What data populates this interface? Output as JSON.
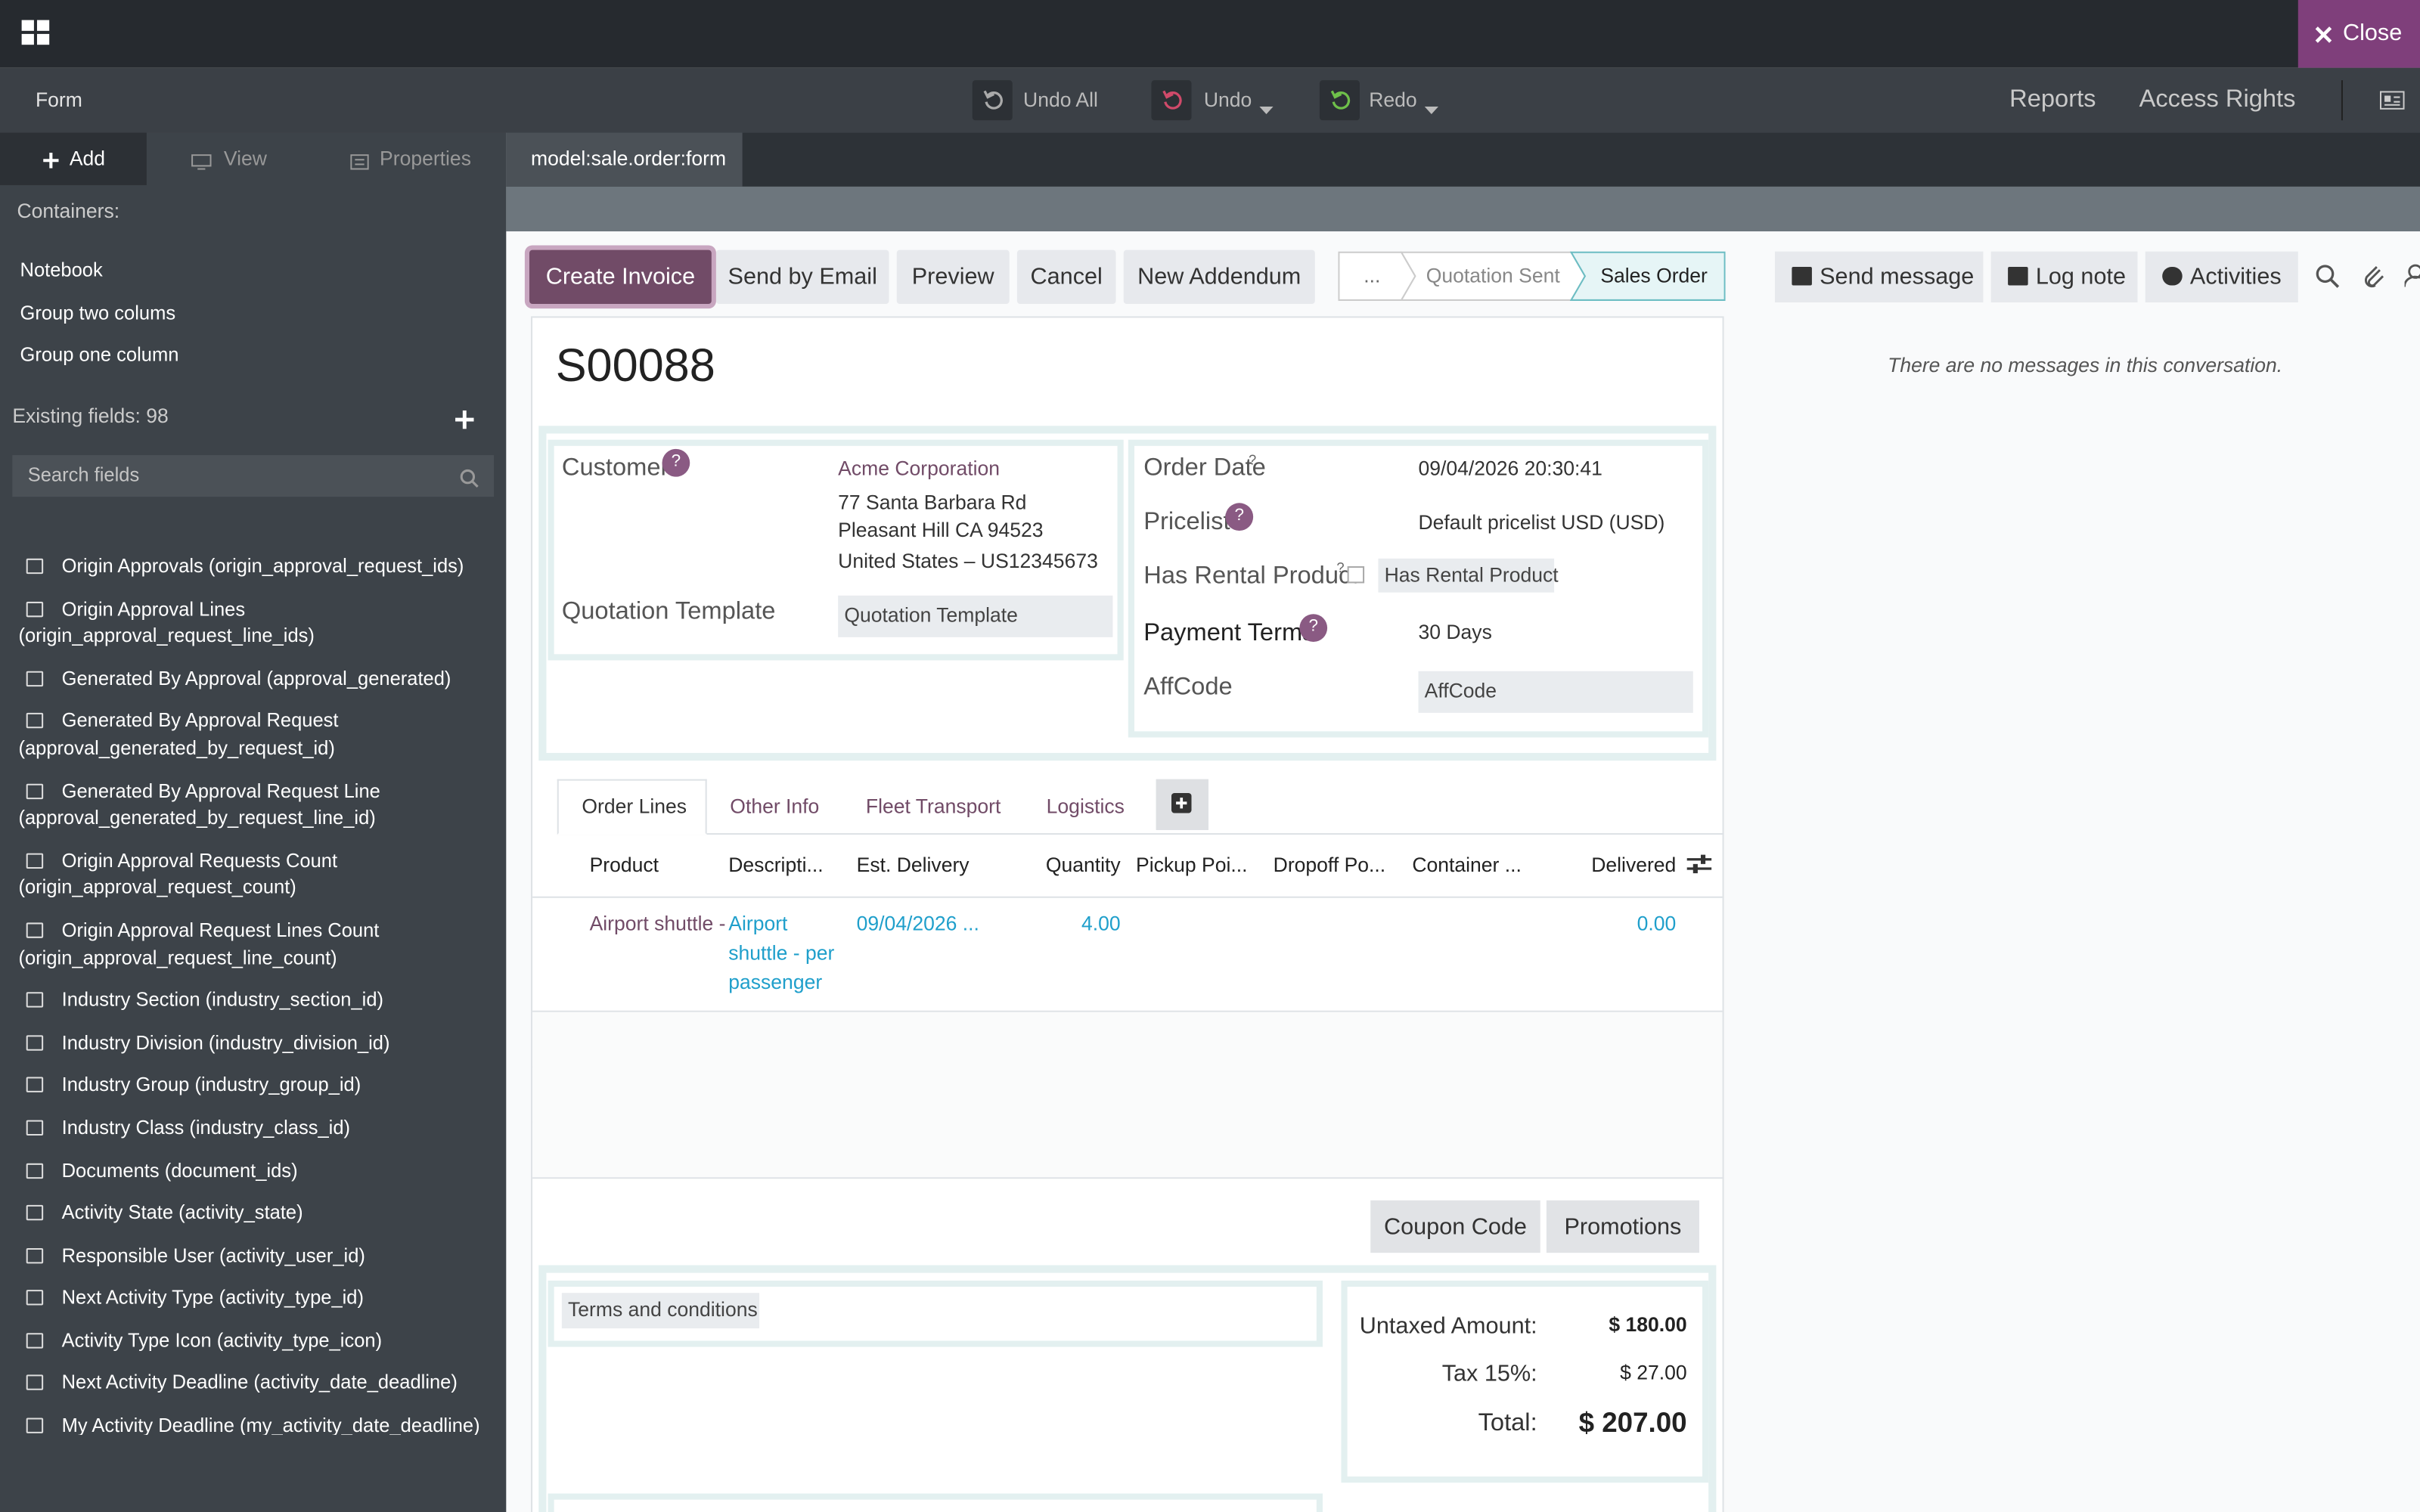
{
  "topbar": {
    "close": "Close"
  },
  "toolbar": {
    "title": "Form",
    "undo_all": "Undo All",
    "undo": "Undo",
    "redo": "Redo",
    "reports": "Reports",
    "access_rights": "Access Rights"
  },
  "sidebar": {
    "tabs": [
      "Add",
      "View",
      "Properties"
    ],
    "containers_label": "Containers:",
    "containers": [
      "Notebook",
      "Group two colums",
      "Group one column"
    ],
    "existing_fields": "Existing fields: 98",
    "search_placeholder": "Search fields",
    "fields": [
      "Origin Approvals (origin_approval_request_ids)",
      "Origin Approval Lines (origin_approval_request_line_ids)",
      "Generated By Approval (approval_generated)",
      "Generated By Approval Request (approval_generated_by_request_id)",
      "Generated By Approval Request Line (approval_generated_by_request_line_id)",
      "Origin Approval Requests Count (origin_approval_request_count)",
      "Origin Approval Request Lines Count (origin_approval_request_line_count)",
      "Industry Section (industry_section_id)",
      "Industry Division (industry_division_id)",
      "Industry Group (industry_group_id)",
      "Industry Class (industry_class_id)",
      "Documents (document_ids)",
      "Activity State (activity_state)",
      "Responsible User (activity_user_id)",
      "Next Activity Type (activity_type_id)",
      "Activity Type Icon (activity_type_icon)",
      "Next Activity Deadline (activity_date_deadline)",
      "My Activity Deadline (my_activity_date_deadline)"
    ]
  },
  "editor_tab": "model:sale.order:form",
  "form": {
    "actions": [
      "Create Invoice",
      "Send by Email",
      "Preview",
      "Cancel",
      "New Addendum"
    ],
    "statusbar": [
      "...",
      "Quotation Sent",
      "Sales Order"
    ],
    "name": "S00088",
    "help": "?",
    "customer": {
      "label": "Customer",
      "name": "Acme Corporation",
      "address": [
        "77 Santa Barbara Rd",
        "Pleasant Hill CA 94523",
        "United States – US12345673"
      ]
    },
    "quotation_template": {
      "label": "Quotation Template",
      "placeholder": "Quotation Template"
    },
    "order_date": {
      "label": "Order Date",
      "value": "09/04/2026 20:30:41"
    },
    "pricelist": {
      "label": "Pricelist",
      "value": "Default pricelist USD (USD)"
    },
    "has_rental_product": {
      "label": "Has Rental Product",
      "placeholder": "Has Rental Product"
    },
    "payment_terms": {
      "label": "Payment Terms",
      "value": "30 Days"
    },
    "affcode": {
      "label": "AffCode",
      "placeholder": "AffCode"
    },
    "notebook_tabs": [
      "Order Lines",
      "Other Info",
      "Fleet Transport",
      "Logistics"
    ],
    "order_lines": {
      "columns": [
        "Product",
        "Descripti...",
        "Est. Delivery",
        "Quantity",
        "Pickup Poi...",
        "Dropoff Po...",
        "Container ...",
        "Delivered"
      ],
      "row": {
        "product": "Airport shuttle -",
        "description": "Airport shuttle - per passenger",
        "est_delivery": "09/04/2026 ...",
        "quantity": "4.00",
        "delivered": "0.00"
      }
    },
    "line_buttons": [
      "Coupon Code",
      "Promotions"
    ],
    "terms_placeholder": "Terms and conditions",
    "totals": [
      {
        "label": "Untaxed Amount:",
        "value": "$ 180.00"
      },
      {
        "label": "Tax 15%:",
        "value": "$ 27.00"
      },
      {
        "label": "Total:",
        "value": "$ 207.00"
      }
    ]
  },
  "chatter": {
    "buttons": [
      "Send message",
      "Log note",
      "Activities"
    ],
    "empty": "There are no messages in this conversation."
  }
}
